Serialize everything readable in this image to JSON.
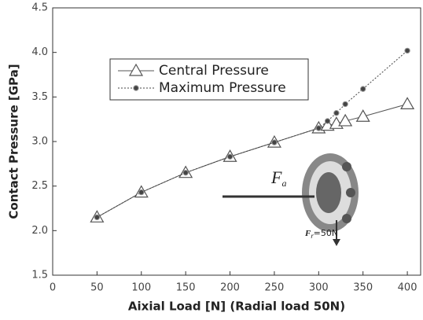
{
  "chart_data": {
    "type": "line",
    "x_label": "Aixial Load [N] (Radial load 50N)",
    "y_label": "Contact Pressure [GPa]",
    "xlim": [
      0,
      415
    ],
    "xticks": [
      0,
      50,
      100,
      150,
      200,
      250,
      300,
      350,
      400
    ],
    "ylim": [
      1.5,
      4.5
    ],
    "yticks": [
      1.5,
      {
        "value": 2,
        "label": "2.0"
      },
      2.5,
      {
        "value": 3,
        "label": "3.0"
      },
      3.5,
      {
        "value": 4,
        "label": "4.0"
      },
      4.5
    ],
    "series": [
      {
        "name": "Central Pressure",
        "color": "#555555",
        "marker": "triangle",
        "dash": false,
        "x": [
          50,
          100,
          150,
          200,
          250,
          300,
          310,
          320,
          330,
          350,
          400
        ],
        "values": [
          2.15,
          2.43,
          2.65,
          2.83,
          2.99,
          3.15,
          3.18,
          3.2,
          3.23,
          3.28,
          3.42
        ]
      },
      {
        "name": "Maximum Pressure",
        "color": "#444444",
        "marker": "circle",
        "dash": true,
        "x": [
          50,
          100,
          150,
          200,
          250,
          300,
          310,
          320,
          330,
          350,
          400
        ],
        "values": [
          2.15,
          2.43,
          2.65,
          2.83,
          2.99,
          3.15,
          3.23,
          3.32,
          3.42,
          3.59,
          4.02
        ]
      }
    ],
    "annotations": [
      {
        "text": "F",
        "sub": "a"
      },
      {
        "text": "F",
        "sub": "r",
        "suffix": "=50N"
      }
    ]
  }
}
